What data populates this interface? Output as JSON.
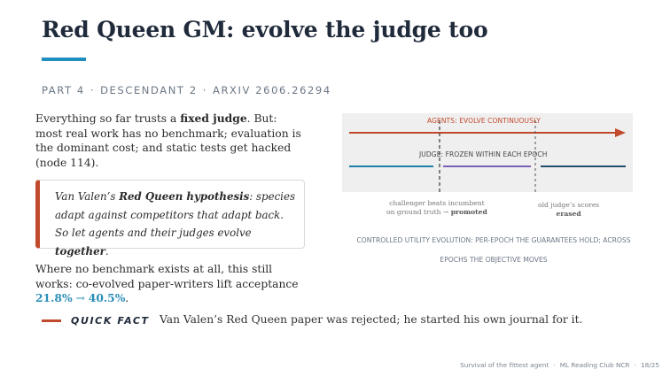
{
  "title": "Red Queen GM: evolve the judge too",
  "kicker": {
    "part": "PART 4",
    "section": "DESCENDANT 2",
    "arxiv": "ARXIV 2606.26294"
  },
  "intro": {
    "before": "Everything so far trusts a ",
    "emphasis": "fixed judge",
    "after": ". But: most real work has no benchmark; evaluation is the dominant cost; and static tests get hacked (node 114)."
  },
  "quote": {
    "prefix": "Van Valen’s ",
    "term": "Red Queen hypothesis",
    "middle": ": species adapt against competitors that adapt back. So let agents and their judges evolve ",
    "emphasis": "together",
    "suffix": "."
  },
  "outro": {
    "text": "Where no benchmark exists at all, this still works: co-evolved paper-writers lift acceptance ",
    "value_from": "21.8%",
    "arrow": " → ",
    "value_to": "40.5%",
    "suffix": "."
  },
  "quick_fact": {
    "label": "QUICK FACT",
    "text": "Van Valen’s Red Queen paper was rejected; he started his own journal for it."
  },
  "diagram": {
    "agents_label": "AGENTS: EVOLVE CONTINUOUSLY",
    "judge_label": "JUDGE: FROZEN WITHIN EACH EPOCH",
    "note_left_line1": "challenger beats incumbent",
    "note_left_line2": "on ground truth → ",
    "note_left_strong": "promoted",
    "note_right_line1": "old judge’s scores",
    "note_right_strong": "erased",
    "caption": "CONTROLLED UTILITY EVOLUTION: PER-EPOCH THE GUARANTEES HOLD; ACROSS EPOCHS THE OBJECTIVE MOVES",
    "epoch_colors": [
      "#1f7ea6",
      "#7b5fb8",
      "#1f4e6b"
    ]
  },
  "footer": {
    "talk": "Survival of the fittest agent",
    "venue": "ML Reading Club NCR",
    "page": "18/25"
  },
  "colors": {
    "accent_blue": "#1f8fbf",
    "accent_red": "#c24a2c",
    "title_navy": "#1f2a3a",
    "highlight_teal": "#2a8fb8"
  }
}
